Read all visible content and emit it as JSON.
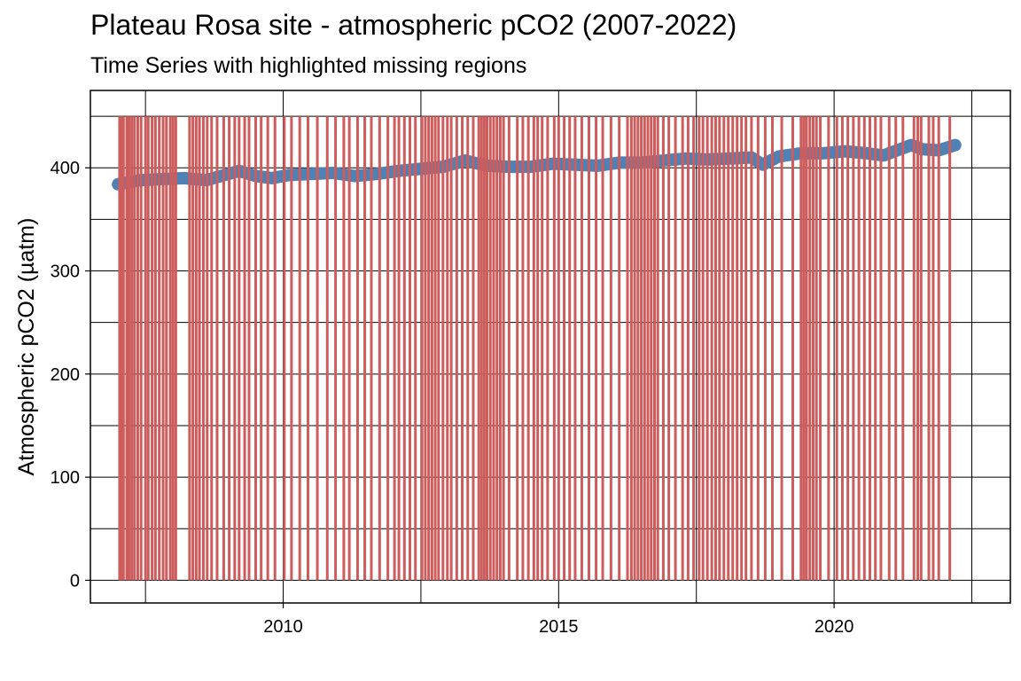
{
  "chart_data": {
    "type": "line",
    "title": "Plateau Rosa site - atmospheric pCO2 (2007-2022)",
    "subtitle": "Time Series with highlighted missing regions",
    "xlabel": "",
    "ylabel": "Atmospheric pCO2 (µatm)",
    "xlim": [
      2006.5,
      2023.2
    ],
    "ylim": [
      -22,
      475
    ],
    "x_ticks": [
      2010,
      2015,
      2020
    ],
    "x_tick_labels": [
      "2010",
      "2015",
      "2020"
    ],
    "y_ticks": [
      0,
      100,
      200,
      300,
      400
    ],
    "y_tick_labels": [
      "0",
      "100",
      "200",
      "300",
      "400"
    ],
    "grid": true,
    "missing_band_height": 450,
    "colors": {
      "series": "#4f81b4",
      "missing": "#cd5c5c",
      "grid": "#000000"
    },
    "series": [
      {
        "x": [
          2007.0,
          2007.4,
          2007.8,
          2008.2,
          2008.6,
          2009.0,
          2009.2,
          2009.5,
          2009.8,
          2010.1,
          2010.5,
          2010.9,
          2011.3,
          2011.7,
          2012.1,
          2012.5,
          2012.9,
          2013.3,
          2013.7,
          2014.1,
          2014.5,
          2014.9,
          2015.3,
          2015.7,
          2016.1,
          2016.5,
          2016.9,
          2017.3,
          2017.7,
          2018.1,
          2018.5,
          2018.7,
          2019.0,
          2019.4,
          2019.8,
          2020.2,
          2020.6,
          2020.9,
          2021.2,
          2021.4,
          2021.6,
          2021.9,
          2022.2
        ],
        "values": [
          384,
          388,
          389,
          390,
          388,
          394,
          397,
          392,
          390,
          393,
          394,
          395,
          392,
          394,
          397,
          399,
          401,
          407,
          402,
          401,
          401,
          404,
          403,
          402,
          405,
          405,
          407,
          409,
          408,
          409,
          410,
          403,
          411,
          414,
          414,
          416,
          414,
          412,
          418,
          422,
          418,
          417,
          422
        ]
      }
    ],
    "missing_x": [
      2007.03,
      2007.06,
      2007.1,
      2007.16,
      2007.2,
      2007.25,
      2007.3,
      2007.36,
      2007.42,
      2007.5,
      2007.55,
      2007.62,
      2007.68,
      2007.75,
      2007.82,
      2007.88,
      2007.95,
      2008.0,
      2008.05,
      2008.3,
      2008.36,
      2008.42,
      2008.48,
      2008.55,
      2008.62,
      2008.7,
      2008.8,
      2008.92,
      2009.02,
      2009.12,
      2009.2,
      2009.3,
      2009.38,
      2009.5,
      2009.6,
      2009.72,
      2009.85,
      2010.02,
      2010.15,
      2010.3,
      2010.45,
      2010.62,
      2010.8,
      2010.95,
      2011.1,
      2011.2,
      2011.35,
      2011.48,
      2011.6,
      2011.75,
      2011.9,
      2012.02,
      2012.1,
      2012.2,
      2012.3,
      2012.4,
      2012.52,
      2012.58,
      2012.64,
      2012.7,
      2012.76,
      2012.82,
      2012.9,
      2012.98,
      2013.05,
      2013.15,
      2013.25,
      2013.35,
      2013.45,
      2013.55,
      2013.6,
      2013.65,
      2013.7,
      2013.76,
      2013.82,
      2013.88,
      2013.94,
      2014.0,
      2014.1,
      2014.25,
      2014.35,
      2014.45,
      2014.55,
      2014.62,
      2014.7,
      2014.8,
      2014.92,
      2015.0,
      2015.1,
      2015.2,
      2015.3,
      2015.42,
      2015.55,
      2015.68,
      2015.8,
      2015.95,
      2016.1,
      2016.25,
      2016.32,
      2016.38,
      2016.44,
      2016.5,
      2016.56,
      2016.62,
      2016.68,
      2016.74,
      2016.8,
      2016.9,
      2017.0,
      2017.12,
      2017.25,
      2017.35,
      2017.45,
      2017.55,
      2017.62,
      2017.7,
      2017.78,
      2017.85,
      2017.92,
      2018.0,
      2018.08,
      2018.16,
      2018.24,
      2018.32,
      2018.4,
      2018.5,
      2018.62,
      2018.75,
      2018.88,
      2019.05,
      2019.25,
      2019.4,
      2019.45,
      2019.5,
      2019.56,
      2019.62,
      2019.68,
      2019.75,
      2019.9,
      2020.05,
      2020.15,
      2020.25,
      2020.35,
      2020.45,
      2020.55,
      2020.65,
      2020.75,
      2020.85,
      2021.0,
      2021.12,
      2021.25,
      2021.45,
      2021.52,
      2021.58,
      2021.72,
      2021.8,
      2021.9,
      2022.1
    ]
  }
}
